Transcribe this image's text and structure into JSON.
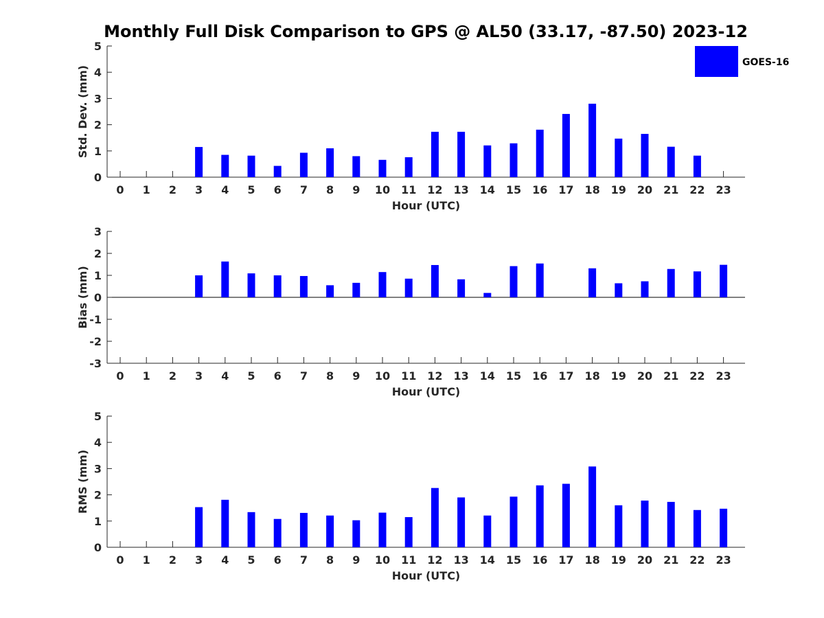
{
  "colors": {
    "bar": "#0000ff",
    "axis": "#262626",
    "background": "#ffffff"
  },
  "chart_data": {
    "title": "Monthly Full Disk Comparison to GPS @ AL50 (33.17, -87.50) 2023-12",
    "legend": {
      "label": "GOES-16",
      "placement": "top-right"
    },
    "grid": false,
    "panels": [
      {
        "type": "bar",
        "ylabel": "Std. Dev. (mm)",
        "xlabel": "Hour (UTC)",
        "ylim": [
          0,
          5
        ],
        "yticks": [
          "0",
          "1",
          "2",
          "3",
          "4",
          "5"
        ],
        "categories": [
          "0",
          "1",
          "2",
          "3",
          "4",
          "5",
          "6",
          "7",
          "8",
          "9",
          "10",
          "11",
          "12",
          "13",
          "14",
          "15",
          "16",
          "17",
          "18",
          "19",
          "20",
          "21",
          "22",
          "23"
        ],
        "series": [
          {
            "name": "GOES-16",
            "values": [
              null,
              null,
              null,
              1.15,
              0.85,
              0.82,
              0.43,
              0.93,
              1.1,
              0.8,
              0.66,
              0.76,
              1.73,
              1.73,
              1.21,
              1.29,
              1.81,
              2.41,
              2.8,
              1.47,
              1.65,
              1.16,
              0.82,
              null
            ]
          }
        ]
      },
      {
        "type": "bar",
        "ylabel": "Bias (mm)",
        "xlabel": "Hour (UTC)",
        "ylim": [
          -3,
          3
        ],
        "yticks": [
          "-3",
          "-2",
          "-1",
          "0",
          "1",
          "2",
          "3"
        ],
        "categories": [
          "0",
          "1",
          "2",
          "3",
          "4",
          "5",
          "6",
          "7",
          "8",
          "9",
          "10",
          "11",
          "12",
          "13",
          "14",
          "15",
          "16",
          "17",
          "18",
          "19",
          "20",
          "21",
          "22",
          "23"
        ],
        "series": [
          {
            "name": "GOES-16",
            "values": [
              null,
              null,
              null,
              1.0,
              1.63,
              1.09,
              1.0,
              0.97,
              0.55,
              0.66,
              1.15,
              0.85,
              1.47,
              0.82,
              0.2,
              1.42,
              1.54,
              0.0,
              1.32,
              0.64,
              0.73,
              1.29,
              1.18,
              1.48
            ]
          }
        ]
      },
      {
        "type": "bar",
        "ylabel": "RMS (mm)",
        "xlabel": "Hour (UTC)",
        "ylim": [
          0,
          5
        ],
        "yticks": [
          "0",
          "1",
          "2",
          "3",
          "4",
          "5"
        ],
        "categories": [
          "0",
          "1",
          "2",
          "3",
          "4",
          "5",
          "6",
          "7",
          "8",
          "9",
          "10",
          "11",
          "12",
          "13",
          "14",
          "15",
          "16",
          "17",
          "18",
          "19",
          "20",
          "21",
          "22",
          "23"
        ],
        "series": [
          {
            "name": "GOES-16",
            "values": [
              null,
              null,
              null,
              1.53,
              1.81,
              1.34,
              1.08,
              1.31,
              1.21,
              1.03,
              1.32,
              1.15,
              2.26,
              1.9,
              1.21,
              1.93,
              2.36,
              2.42,
              3.08,
              1.6,
              1.78,
              1.73,
              1.42,
              1.47
            ]
          }
        ]
      }
    ]
  }
}
